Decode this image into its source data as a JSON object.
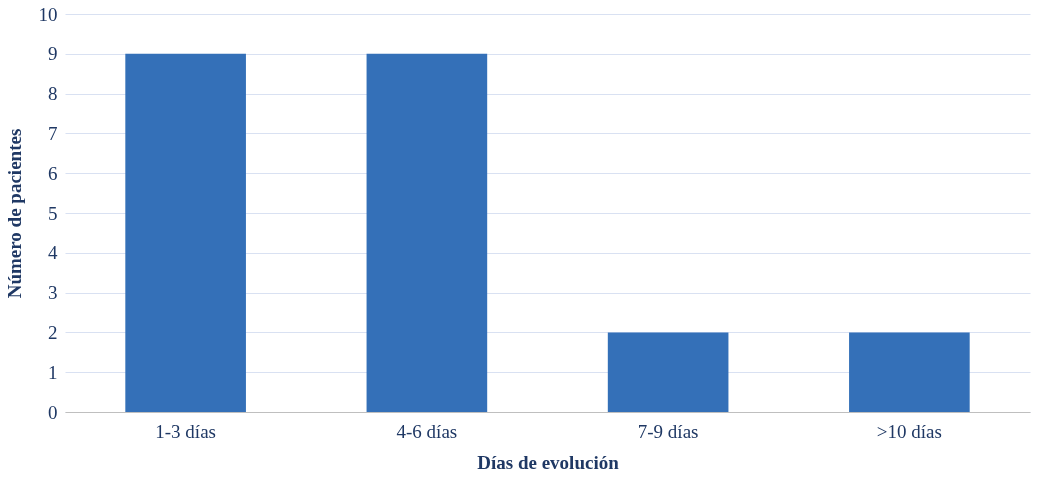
{
  "chart_data": {
    "type": "bar",
    "xlabel": "Días de evolución",
    "ylabel": "Número de pacientes",
    "categories": [
      "1-3 días",
      "4-6 días",
      "7-9 días",
      ">10 días"
    ],
    "values": [
      9,
      9,
      2,
      2
    ],
    "color": "#3470b8",
    "ylim": [
      0,
      10
    ],
    "yticks": [
      0,
      1,
      2,
      3,
      4,
      5,
      6,
      7,
      8,
      9,
      10
    ],
    "grid": "y"
  }
}
